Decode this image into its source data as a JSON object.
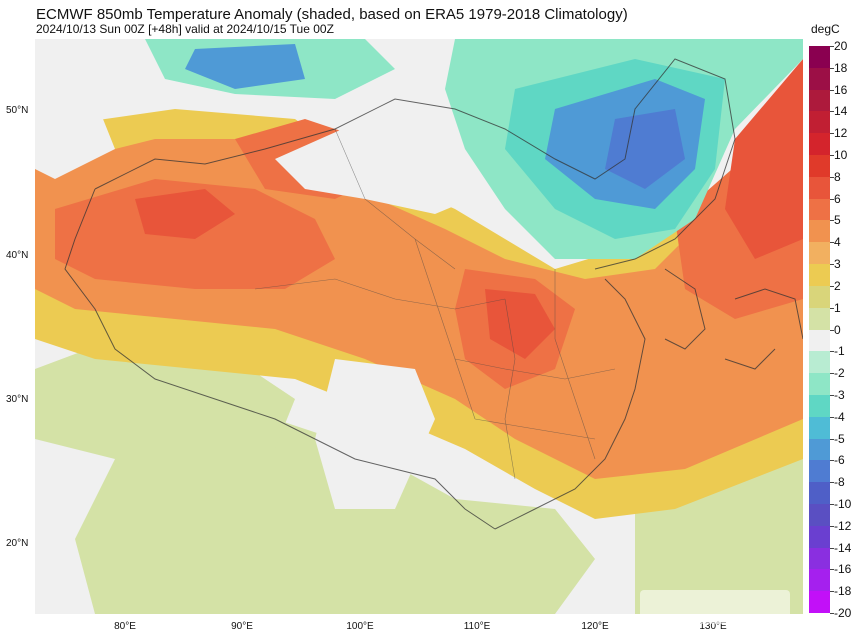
{
  "title": "ECMWF 850mb Temperature Anomaly (shaded, based on ERA5 1979-2018 Climatology)",
  "subtitle": "2024/10/13 Sun 00Z [+48h] valid at 2024/10/15 Tue 00Z",
  "colorbar": {
    "unit": "degC",
    "labels": [
      "20",
      "18",
      "16",
      "14",
      "12",
      "10",
      "8",
      "6",
      "5",
      "4",
      "3",
      "2",
      "1",
      "0",
      "-1",
      "-2",
      "-3",
      "-4",
      "-5",
      "-6",
      "-8",
      "-10",
      "-12",
      "-14",
      "-16",
      "-18",
      "-20"
    ],
    "colors": [
      "#8a0050",
      "#9c0f46",
      "#ad1a3c",
      "#c11f33",
      "#d4242c",
      "#e03a2a",
      "#e8553a",
      "#ee7145",
      "#f1924f",
      "#f2b060",
      "#eccb52",
      "#d9d57a",
      "#d4e2a6",
      "#f0f0f0",
      "#b8ecd2",
      "#8ee6c6",
      "#5fd7c4",
      "#4fbcd6",
      "#4f9ad6",
      "#4f7cd2",
      "#4f5fc7",
      "#5a4fc2",
      "#6a3fd0",
      "#8a2fe0",
      "#a520ee",
      "#c210f8"
    ]
  },
  "axes": {
    "lat_labels": [
      "50°N",
      "40°N",
      "30°N",
      "20°N"
    ],
    "lon_labels": [
      "80°E",
      "90°E",
      "100°E",
      "110°E",
      "120°E",
      "130°E"
    ]
  },
  "palette": {
    "strong_warm": "#e8553a",
    "warm": "#ee7145",
    "mild_warm": "#f1924f",
    "light_warm": "#eccb52",
    "faint_warm": "#d4e2a6",
    "neutral": "#f0f0f0",
    "cool": "#8ee6c6",
    "cold": "#4f9ad6",
    "very_cold": "#4f7cd2"
  }
}
